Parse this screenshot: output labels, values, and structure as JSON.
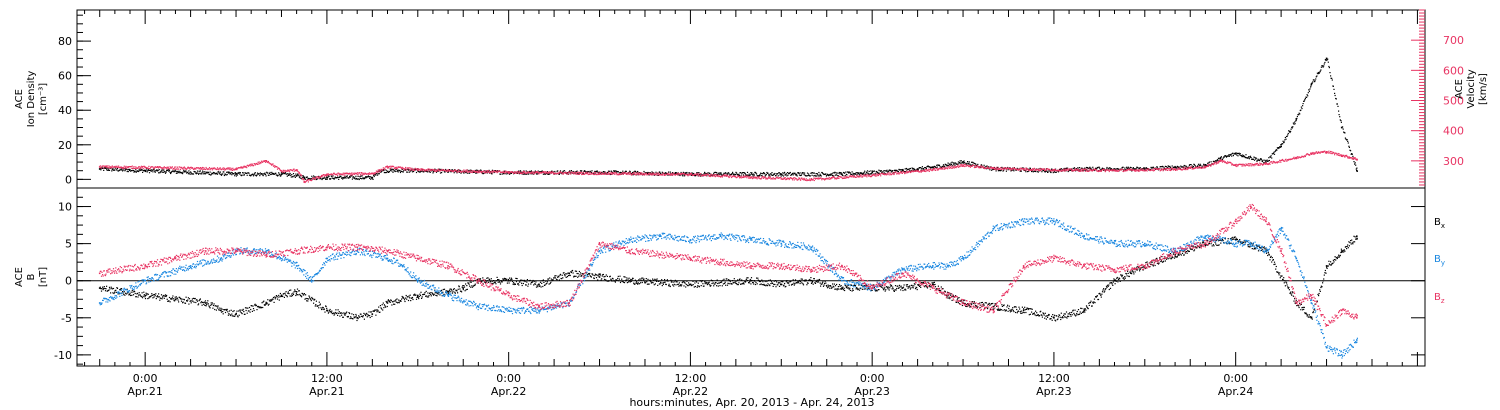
{
  "chart_data": [
    {
      "type": "scatter",
      "panel": "top",
      "ylabel_lines": [
        "ACE",
        "Ion Density",
        "[cm⁻³]"
      ],
      "ylim": [
        -5,
        98
      ],
      "yticks": [
        0,
        20,
        40,
        60,
        80
      ],
      "y2label_lines": [
        "ACE",
        "Velocity",
        "[km/s]"
      ],
      "y2lim": [
        210,
        800
      ],
      "y2ticks": [
        300,
        400,
        500,
        600,
        700
      ],
      "zero_line": false,
      "series": [
        {
          "axis": "left",
          "color": "#000000",
          "x": [
            -3,
            0,
            6,
            9,
            10,
            10.5,
            12,
            15,
            15.5,
            18,
            24,
            30,
            36,
            42,
            46,
            48,
            50,
            51,
            52,
            54,
            56,
            60,
            62,
            64,
            66,
            68,
            70,
            71,
            72,
            74,
            75,
            76,
            77,
            78,
            79,
            80
          ],
          "y": [
            6,
            5,
            3,
            3,
            2,
            1,
            1,
            1,
            5,
            5,
            4,
            4,
            3,
            3,
            3,
            4,
            5,
            6,
            7,
            10,
            6,
            5,
            6,
            6,
            6,
            7,
            8,
            12,
            15,
            10,
            20,
            35,
            55,
            70,
            30,
            5
          ]
        },
        {
          "axis": "right",
          "color": "#e83463",
          "x": [
            -3,
            0,
            6,
            8,
            9,
            10,
            10.5,
            12,
            15,
            16,
            18,
            24,
            30,
            36,
            40,
            44,
            48,
            52,
            54,
            56,
            60,
            64,
            68,
            70,
            71,
            72,
            74,
            76,
            77,
            78,
            79,
            80
          ],
          "y": [
            280,
            278,
            272,
            300,
            265,
            270,
            230,
            255,
            258,
            280,
            270,
            262,
            258,
            255,
            245,
            238,
            252,
            270,
            285,
            275,
            270,
            268,
            272,
            280,
            300,
            285,
            290,
            310,
            325,
            330,
            318,
            305
          ]
        }
      ]
    },
    {
      "type": "scatter",
      "panel": "bottom",
      "ylabel_lines": [
        "ACE",
        "B",
        "[nT]"
      ],
      "ylim": [
        -11.5,
        12.5
      ],
      "yticks": [
        -10,
        -5,
        0,
        5,
        10
      ],
      "zero_line": true,
      "legend_position": "right",
      "series": [
        {
          "name": "Bx",
          "color": "#000000",
          "x": [
            -3,
            0,
            2,
            4,
            5,
            6,
            8,
            9,
            10,
            12,
            14,
            15,
            16,
            18,
            20,
            21,
            22,
            24,
            26,
            28,
            30,
            32,
            36,
            40,
            42,
            44,
            46,
            48,
            50,
            52,
            53,
            54,
            56,
            58,
            60,
            62,
            64,
            66,
            68,
            70,
            72,
            74,
            76,
            77,
            78,
            79,
            80
          ],
          "y": [
            -1,
            -2,
            -2.5,
            -3,
            -4,
            -4.5,
            -3,
            -2,
            -1.5,
            -4,
            -5,
            -4.5,
            -3,
            -2,
            -1.5,
            -1,
            0,
            0,
            -0.5,
            1,
            0.5,
            0,
            -0.5,
            0,
            -0.5,
            0,
            -1,
            -1,
            -1,
            -0.5,
            -2,
            -3,
            -3.5,
            -4,
            -5,
            -4,
            0,
            2,
            3.5,
            5,
            5.5,
            4,
            -3,
            -5,
            2,
            4,
            6
          ]
        },
        {
          "name": "By",
          "color": "#1a87e0",
          "x": [
            -3,
            0,
            3,
            5,
            6,
            8,
            10,
            11,
            12,
            14,
            16,
            17,
            18,
            20,
            22,
            24,
            26,
            28,
            30,
            32,
            34,
            36,
            38,
            40,
            42,
            44,
            46,
            48,
            50,
            52,
            53,
            54,
            56,
            58,
            60,
            62,
            64,
            66,
            68,
            70,
            72,
            73,
            74,
            75,
            76,
            77,
            78,
            79,
            80
          ],
          "y": [
            -3,
            0,
            2,
            3,
            4,
            4,
            2,
            0,
            3,
            4,
            3,
            2,
            0,
            -2,
            -3.5,
            -4,
            -4,
            -3,
            4,
            5.5,
            6,
            5.5,
            6,
            5.5,
            5,
            4.5,
            0,
            -1,
            1.5,
            2,
            2,
            3,
            7,
            8,
            8,
            6,
            5,
            5,
            4,
            6,
            5,
            5,
            4,
            7,
            3,
            -3,
            -9,
            -10,
            -8
          ]
        },
        {
          "name": "Bz",
          "color": "#e83463",
          "x": [
            -3,
            0,
            2,
            4,
            6,
            8,
            10,
            12,
            14,
            16,
            18,
            20,
            22,
            24,
            26,
            28,
            30,
            32,
            34,
            36,
            38,
            40,
            42,
            44,
            46,
            48,
            50,
            52,
            54,
            56,
            58,
            60,
            62,
            64,
            66,
            68,
            70,
            72,
            73,
            74,
            75,
            76,
            77,
            78,
            79,
            80
          ],
          "y": [
            1,
            2,
            3,
            4,
            4,
            3.5,
            4,
            4.5,
            4.5,
            4,
            3,
            2,
            0,
            -2,
            -3.5,
            -3,
            5,
            4,
            3.5,
            3,
            2.5,
            2,
            2,
            1.5,
            2,
            -1,
            1,
            -1,
            -3,
            -4,
            2,
            3,
            2,
            1.5,
            2,
            4,
            5,
            8,
            10,
            8,
            4,
            -3,
            -2,
            -6,
            -4,
            -5
          ]
        }
      ]
    }
  ],
  "x_axis": {
    "xlim": [
      -4.5,
      84.5
    ],
    "ticks": [
      {
        "x": 0,
        "time": "0:00",
        "date": "Apr.21"
      },
      {
        "x": 12,
        "time": "12:00",
        "date": "Apr.21"
      },
      {
        "x": 24,
        "time": "0:00",
        "date": "Apr.22"
      },
      {
        "x": 36,
        "time": "12:00",
        "date": "Apr.22"
      },
      {
        "x": 48,
        "time": "0:00",
        "date": "Apr.23"
      },
      {
        "x": 60,
        "time": "12:00",
        "date": "Apr.23"
      },
      {
        "x": 72,
        "time": "0:00",
        "date": "Apr.24"
      }
    ],
    "title": "hours:minutes, Apr. 20, 2013 - Apr. 24, 2013"
  },
  "legend": [
    {
      "base": "B",
      "sub": "x",
      "color": "#000000"
    },
    {
      "base": "B",
      "sub": "y",
      "color": "#1a87e0"
    },
    {
      "base": "B",
      "sub": "z",
      "color": "#e83463"
    }
  ]
}
